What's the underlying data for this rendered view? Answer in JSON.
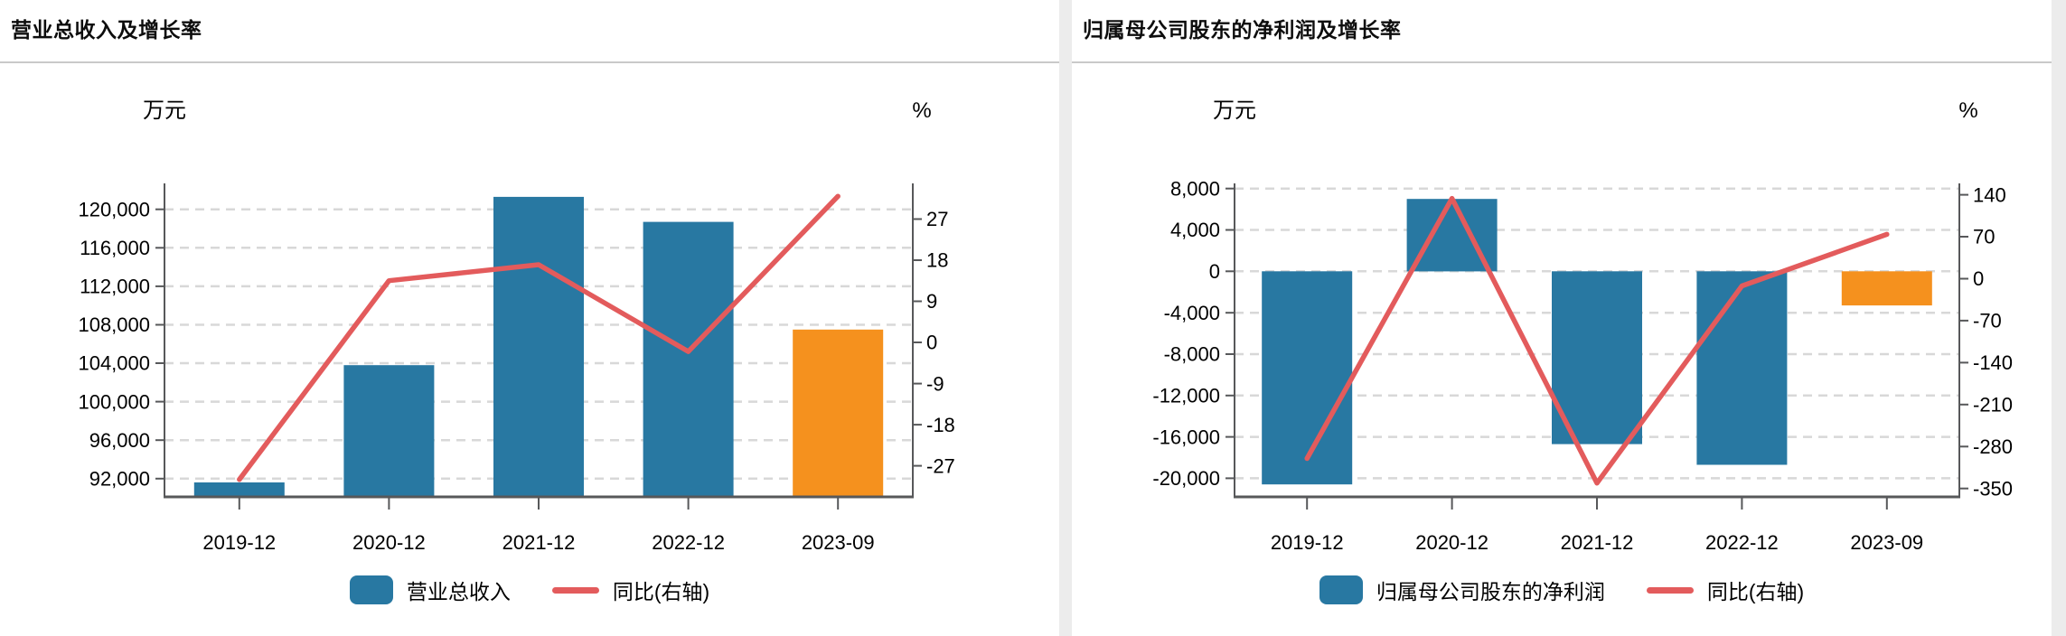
{
  "colors": {
    "bar_blue": "#2878a2",
    "bar_highlight_orange": "#f5911e",
    "line_red": "#e35b5c",
    "grid": "#d8d8d8",
    "axis": "#57585a",
    "tick_text": "#000000",
    "title_text": "#0d0d0d",
    "title_rule": "#c9c9c9",
    "page_background": "#ececec",
    "panel_background": "#ffffff"
  },
  "chart_data": [
    {
      "type": "combo",
      "title": "营业总收入及增长率",
      "categories": [
        "2019-12",
        "2020-12",
        "2021-12",
        "2022-12",
        "2023-09"
      ],
      "series": [
        {
          "name": "营业总收入",
          "type": "bar",
          "axis": "left",
          "values": [
            91600,
            103800,
            121300,
            118700,
            107500
          ],
          "colors": [
            "#2878a2",
            "#2878a2",
            "#2878a2",
            "#2878a2",
            "#f5911e"
          ]
        },
        {
          "name": "同比(右轴)",
          "type": "line",
          "axis": "right",
          "values": [
            -30,
            13.5,
            17,
            -2,
            32
          ],
          "color": "#e35b5c"
        }
      ],
      "left_axis": {
        "unit": "万元",
        "min": 90100,
        "max": 122700,
        "ticks": [
          120000,
          116000,
          112000,
          108000,
          104000,
          100000,
          96000,
          92000
        ]
      },
      "right_axis": {
        "unit": "%",
        "min": -33.8,
        "max": 34.8,
        "ticks": [
          27,
          18,
          9,
          0,
          -9,
          -18,
          -27
        ]
      },
      "grid": "horizontal-dashed",
      "legend": {
        "position": "bottom",
        "items": [
          "营业总收入",
          "同比(右轴)"
        ]
      }
    },
    {
      "type": "combo",
      "title": "归属母公司股东的净利润及增长率",
      "categories": [
        "2019-12",
        "2020-12",
        "2021-12",
        "2022-12",
        "2023-09"
      ],
      "series": [
        {
          "name": "归属母公司股东的净利润",
          "type": "bar",
          "axis": "left",
          "values": [
            -20600,
            7000,
            -16700,
            -18700,
            -3300
          ],
          "colors": [
            "#2878a2",
            "#2878a2",
            "#2878a2",
            "#2878a2",
            "#f5911e"
          ]
        },
        {
          "name": "同比(右轴)",
          "type": "line",
          "axis": "right",
          "values": [
            -300,
            134,
            -341,
            -12,
            74
          ],
          "color": "#e35b5c"
        }
      ],
      "left_axis": {
        "unit": "万元",
        "min": -21800,
        "max": 8500,
        "ticks": [
          8000,
          4000,
          0,
          -4000,
          -8000,
          -12000,
          -16000,
          -20000
        ]
      },
      "right_axis": {
        "unit": "%",
        "min": -364,
        "max": 159,
        "ticks": [
          140,
          70,
          0,
          -70,
          -140,
          -210,
          -280,
          -350
        ]
      },
      "grid": "horizontal-dashed",
      "legend": {
        "position": "bottom",
        "items": [
          "归属母公司股东的净利润",
          "同比(右轴)"
        ]
      }
    }
  ]
}
